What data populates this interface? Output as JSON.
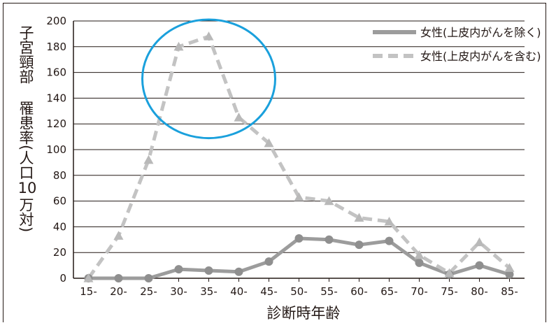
{
  "chart_data": {
    "type": "line",
    "ylabel_parts": [
      "子宮頸部",
      "罹患率",
      "(",
      "人口",
      "10",
      "万対",
      ")"
    ],
    "xlabel": "診断時年齢",
    "categories": [
      "15-",
      "20-",
      "25-",
      "30-",
      "35-",
      "40-",
      "45-",
      "50-",
      "55-",
      "60-",
      "65-",
      "70-",
      "75-",
      "80-",
      "85-"
    ],
    "ylim": [
      0,
      200
    ],
    "yticks": [
      0,
      20,
      40,
      60,
      80,
      100,
      120,
      140,
      160,
      180,
      200
    ],
    "grid": true,
    "legend_position": "top-right",
    "series": [
      {
        "name": "女性(上皮内がんを除く)",
        "style": "solid",
        "marker": "circle",
        "color": "#9c9c9c",
        "values": [
          0,
          0,
          0,
          7,
          6,
          5,
          13,
          31,
          30,
          26,
          29,
          12,
          3,
          10,
          3
        ]
      },
      {
        "name": "女性(上皮内がんを含む)",
        "style": "dashed",
        "marker": "triangle",
        "color": "#c3c3c3",
        "values": [
          0,
          33,
          92,
          180,
          188,
          125,
          105,
          63,
          60,
          47,
          44,
          18,
          4,
          28,
          8
        ]
      }
    ],
    "annotation": {
      "shape": "ellipse",
      "color": "#1aa0dc",
      "span": [
        "30-",
        "40-"
      ]
    }
  }
}
